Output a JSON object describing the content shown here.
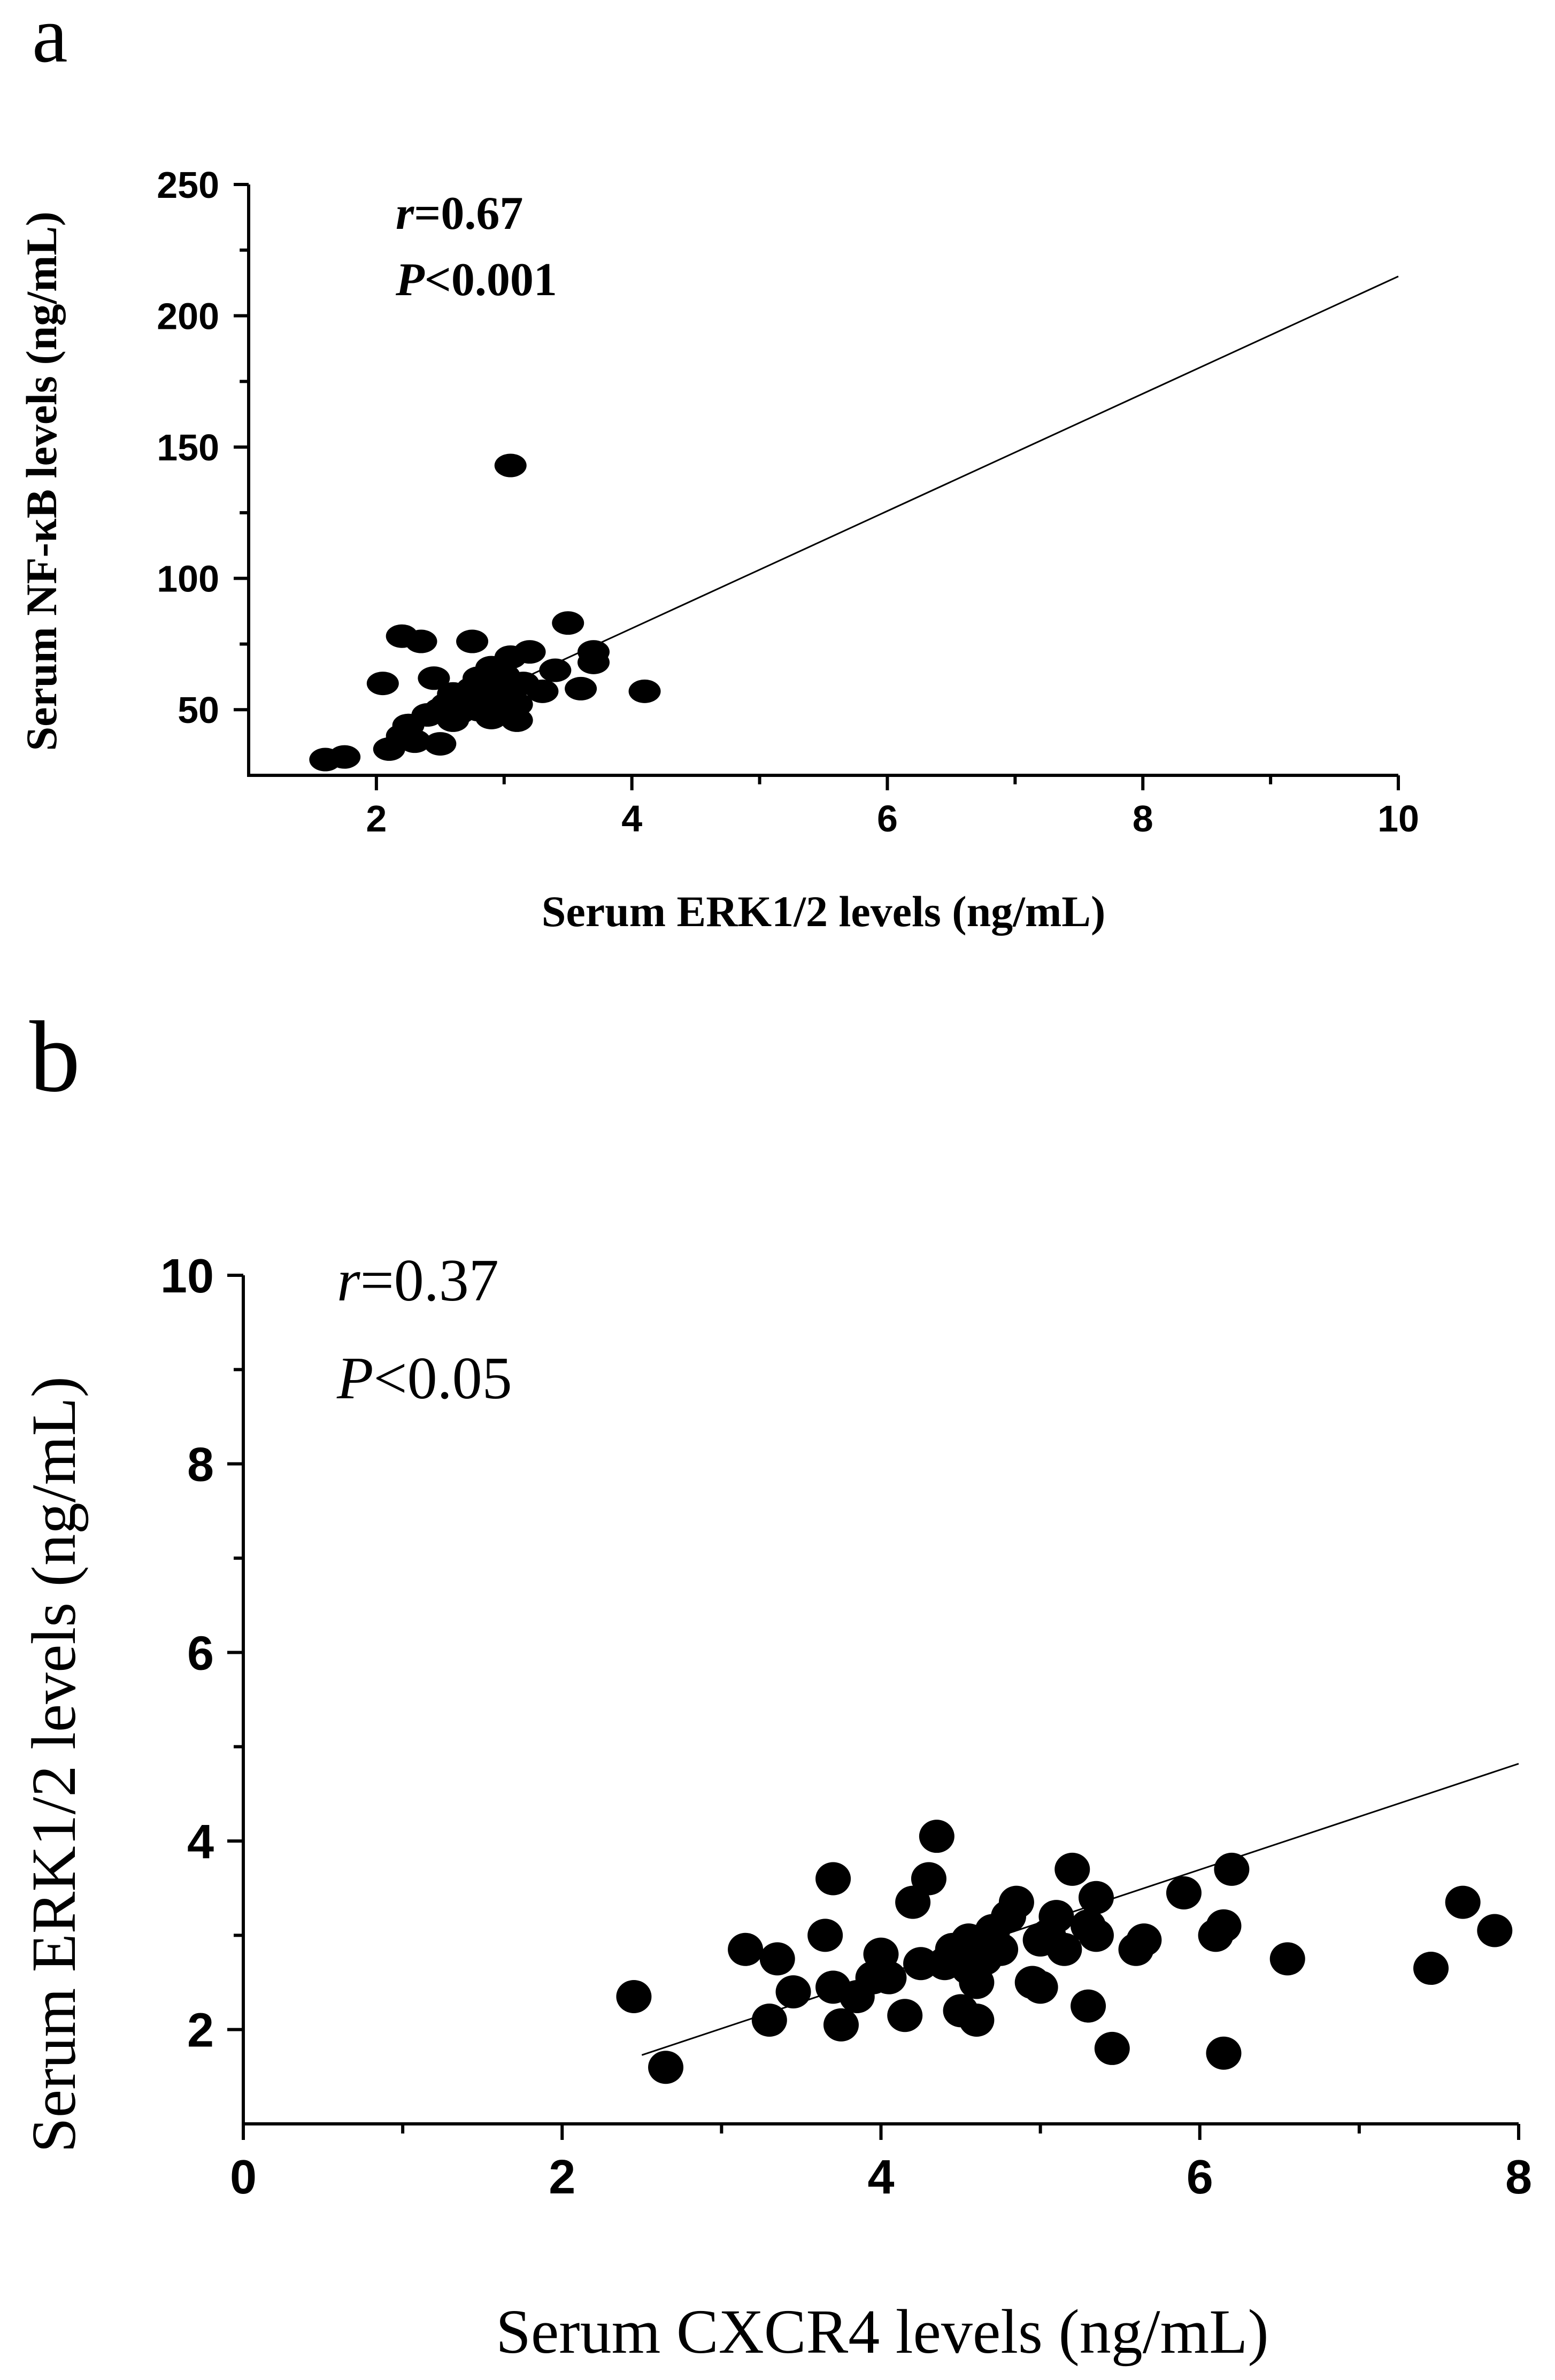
{
  "chart_data": [
    {
      "panel_label": "a",
      "type": "scatter",
      "title": "",
      "xlabel": "Serum ERK1/2 levels (ng/mL)",
      "ylabel": "Serum NF-κB levels (ng/mL)",
      "xlim": [
        1.0,
        10.0
      ],
      "ylim": [
        25,
        250
      ],
      "x_ticks": [
        2,
        4,
        6,
        8,
        10
      ],
      "x_tick_labels": [
        "2",
        "4",
        "6",
        "8",
        "10"
      ],
      "y_ticks": [
        50,
        100,
        150,
        200,
        250
      ],
      "y_tick_labels": [
        "50",
        "100",
        "150",
        "200",
        "250"
      ],
      "stats": {
        "r_symbol": "r",
        "r_value": "=0.67",
        "p_symbol": "P",
        "p_value": "<0.001"
      },
      "fit_line": {
        "x_start": 2.3,
        "y_start": 43,
        "x_end": 10.0,
        "y_end": 215
      },
      "points": {
        "x": [
          1.6,
          1.75,
          2.1,
          2.2,
          2.2,
          2.25,
          2.3,
          2.35,
          2.4,
          2.45,
          2.5,
          2.5,
          2.55,
          2.6,
          2.6,
          2.65,
          2.7,
          2.75,
          2.75,
          2.8,
          2.8,
          2.85,
          2.85,
          2.9,
          2.9,
          2.95,
          3.0,
          3.0,
          3.05,
          3.05,
          3.1,
          3.1,
          3.15,
          3.2,
          3.3,
          3.4,
          3.5,
          3.6,
          3.7,
          3.7,
          4.1,
          2.05
        ],
        "y": [
          31,
          32,
          35,
          40,
          78,
          44,
          38,
          76,
          48,
          62,
          37,
          50,
          52,
          56,
          46,
          49,
          53,
          58,
          76,
          50,
          62,
          55,
          60,
          47,
          66,
          54,
          57,
          63,
          143,
          70,
          46,
          52,
          60,
          72,
          57,
          65,
          83,
          58,
          68,
          72,
          57,
          60
        ]
      }
    },
    {
      "panel_label": "b",
      "type": "scatter",
      "title": "",
      "xlabel": "Serum CXCR4 levels (ng/mL)",
      "ylabel": "Serum ERK1/2 levels (ng/mL)",
      "xlim": [
        0,
        8
      ],
      "ylim": [
        1,
        10
      ],
      "x_ticks": [
        0,
        2,
        4,
        6,
        8
      ],
      "x_tick_labels": [
        "0",
        "2",
        "4",
        "6",
        "8"
      ],
      "y_ticks": [
        2,
        4,
        6,
        8,
        10
      ],
      "y_tick_labels": [
        "2",
        "4",
        "6",
        "8",
        "10"
      ],
      "stats": {
        "r_symbol": "r",
        "r_value": "=0.37",
        "p_symbol": "P",
        "p_value": "<0.05"
      },
      "fit_line": {
        "x_start": 2.5,
        "y_start": 1.73,
        "x_end": 8.0,
        "y_end": 4.82
      },
      "points": {
        "x": [
          2.45,
          2.65,
          3.15,
          3.3,
          3.35,
          3.45,
          3.65,
          3.7,
          3.7,
          3.75,
          3.85,
          3.95,
          4.0,
          4.05,
          4.15,
          4.2,
          4.25,
          4.3,
          4.35,
          4.4,
          4.45,
          4.5,
          4.55,
          4.55,
          4.6,
          4.6,
          4.65,
          4.7,
          4.75,
          4.8,
          4.85,
          4.95,
          5.0,
          5.0,
          5.05,
          5.1,
          5.15,
          5.2,
          5.3,
          5.3,
          5.35,
          5.35,
          5.45,
          5.6,
          5.65,
          5.9,
          6.1,
          6.15,
          6.15,
          6.2,
          6.55,
          7.45,
          7.65,
          7.85
        ],
        "y": [
          2.35,
          1.6,
          2.85,
          2.1,
          2.75,
          2.4,
          3.0,
          3.6,
          2.45,
          2.05,
          2.35,
          2.55,
          2.8,
          2.55,
          2.15,
          3.35,
          2.7,
          3.6,
          4.05,
          2.7,
          2.85,
          2.2,
          2.65,
          2.95,
          2.1,
          2.5,
          2.75,
          3.05,
          2.85,
          3.2,
          3.35,
          2.5,
          2.95,
          2.45,
          3.0,
          3.2,
          2.85,
          3.7,
          2.25,
          3.1,
          3.4,
          3.0,
          1.8,
          2.85,
          2.95,
          3.45,
          3.0,
          1.75,
          3.1,
          3.7,
          2.75,
          2.65,
          3.35,
          3.05
        ]
      }
    }
  ]
}
